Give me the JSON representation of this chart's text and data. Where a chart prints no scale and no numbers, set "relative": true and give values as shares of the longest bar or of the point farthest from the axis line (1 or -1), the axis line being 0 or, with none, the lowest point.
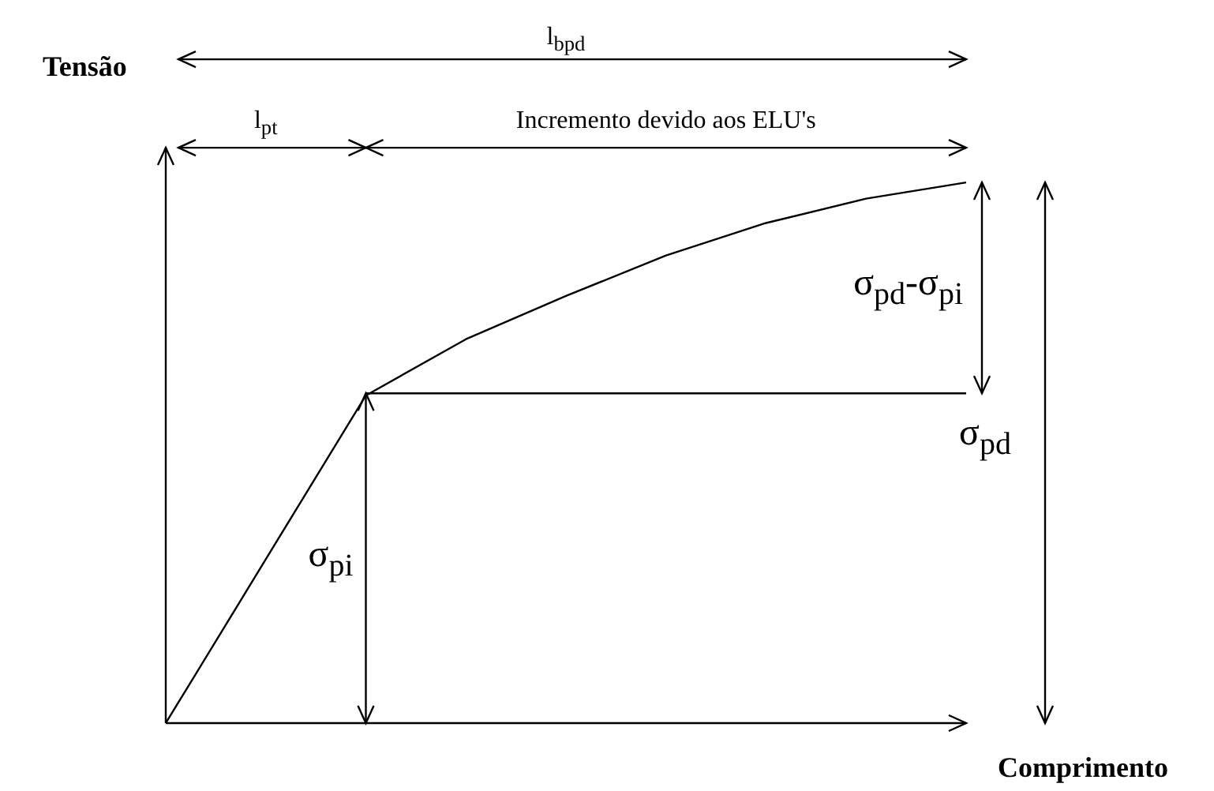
{
  "chart_data": {
    "type": "line",
    "relative": true,
    "xlabel": "Comprimento",
    "ylabel": "Tensão",
    "tick_labels": false,
    "marker": "none",
    "line_style": "solid",
    "categories": [
      null,
      null,
      null,
      null,
      null,
      null,
      null,
      null,
      null
    ],
    "annotations": [
      "l$_{bpd}$",
      "l$_{pt}$",
      "Incremento devido aos ELU's",
      "σ$_{pd}$-σ$_{pi}$",
      "σ$_{pd}$",
      "σ$_{pi}$"
    ],
    "series": [
      {
        "color": "#000000",
        "values": [
          0,
          0.303,
          0.606,
          0.71,
          0.79,
          0.865,
          0.925,
          0.97,
          1
        ]
      },
      {
        "color": "#000000",
        "values": [
          null,
          null,
          0.61,
          0.61,
          0.61,
          0.61,
          0.61,
          0.61,
          0.61
        ]
      }
    ]
  }
}
